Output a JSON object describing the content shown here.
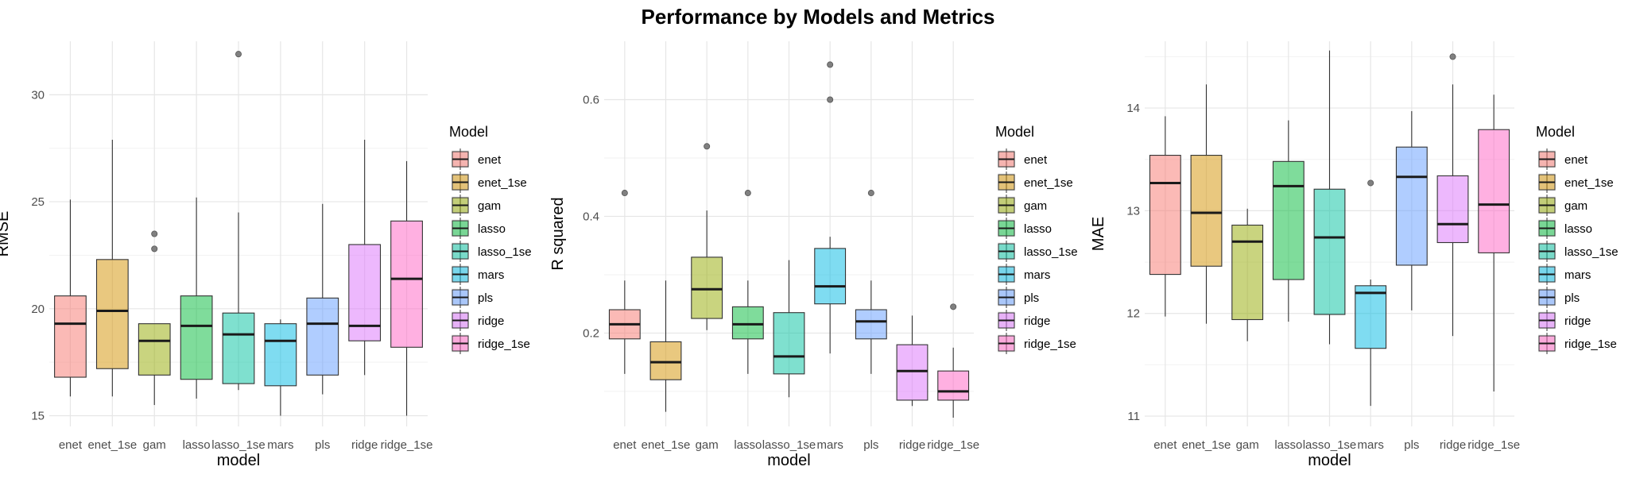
{
  "figure": {
    "title": "Performance by Models and Metrics"
  },
  "colors": {
    "enet": "#F8766D",
    "enet_1se": "#D39200",
    "gam": "#93AA00",
    "lasso": "#00BA38",
    "lasso_1se": "#00C19F",
    "mars": "#00B9E3",
    "pls": "#619CFF",
    "ridge": "#DB72FB",
    "ridge_1se": "#FF61C3"
  },
  "legend": {
    "title": "Model",
    "entries": [
      "enet",
      "enet_1se",
      "gam",
      "lasso",
      "lasso_1se",
      "mars",
      "pls",
      "ridge",
      "ridge_1se"
    ]
  },
  "chart_data": [
    {
      "type": "boxplot",
      "xlabel": "model",
      "ylabel": "RMSE",
      "ylim": [
        14.5,
        32.5
      ],
      "yticks": [
        15,
        20,
        25,
        30
      ],
      "ytick_labels": [
        "15",
        "20",
        "25",
        "30"
      ],
      "grid": true,
      "legend_position": "right",
      "categories": [
        "enet",
        "enet_1se",
        "gam",
        "lasso",
        "lasso_1se",
        "mars",
        "pls",
        "ridge",
        "ridge_1se"
      ],
      "boxes": [
        {
          "model": "enet",
          "lower_whisker": 15.9,
          "q1": 16.8,
          "median": 19.3,
          "q3": 20.6,
          "upper_whisker": 25.1,
          "outliers": []
        },
        {
          "model": "enet_1se",
          "lower_whisker": 15.9,
          "q1": 17.2,
          "median": 19.9,
          "q3": 22.3,
          "upper_whisker": 27.9,
          "outliers": []
        },
        {
          "model": "gam",
          "lower_whisker": 15.5,
          "q1": 16.9,
          "median": 18.5,
          "q3": 19.3,
          "upper_whisker": 19.3,
          "outliers": [
            22.8,
            23.5
          ]
        },
        {
          "model": "lasso",
          "lower_whisker": 15.8,
          "q1": 16.7,
          "median": 19.2,
          "q3": 20.6,
          "upper_whisker": 25.2,
          "outliers": []
        },
        {
          "model": "lasso_1se",
          "lower_whisker": 16.2,
          "q1": 16.5,
          "median": 18.8,
          "q3": 19.8,
          "upper_whisker": 24.5,
          "outliers": [
            31.9
          ]
        },
        {
          "model": "mars",
          "lower_whisker": 15.0,
          "q1": 16.4,
          "median": 18.5,
          "q3": 19.3,
          "upper_whisker": 19.5,
          "outliers": []
        },
        {
          "model": "pls",
          "lower_whisker": 16.0,
          "q1": 16.9,
          "median": 19.3,
          "q3": 20.5,
          "upper_whisker": 24.9,
          "outliers": []
        },
        {
          "model": "ridge",
          "lower_whisker": 16.9,
          "q1": 18.5,
          "median": 19.2,
          "q3": 23.0,
          "upper_whisker": 27.9,
          "outliers": []
        },
        {
          "model": "ridge_1se",
          "lower_whisker": 15.0,
          "q1": 18.2,
          "median": 21.4,
          "q3": 24.1,
          "upper_whisker": 26.9,
          "outliers": []
        }
      ]
    },
    {
      "type": "boxplot",
      "xlabel": "model",
      "ylabel": "R squared",
      "ylim": [
        0.04,
        0.7
      ],
      "yticks": [
        0.2,
        0.4,
        0.6
      ],
      "ytick_labels": [
        "0.2",
        "0.4",
        "0.6"
      ],
      "grid": true,
      "legend_position": "right",
      "categories": [
        "enet",
        "enet_1se",
        "gam",
        "lasso",
        "lasso_1se",
        "mars",
        "pls",
        "ridge",
        "ridge_1se"
      ],
      "boxes": [
        {
          "model": "enet",
          "lower_whisker": 0.13,
          "q1": 0.19,
          "median": 0.215,
          "q3": 0.24,
          "upper_whisker": 0.29,
          "outliers": [
            0.44
          ]
        },
        {
          "model": "enet_1se",
          "lower_whisker": 0.065,
          "q1": 0.12,
          "median": 0.15,
          "q3": 0.185,
          "upper_whisker": 0.29,
          "outliers": []
        },
        {
          "model": "gam",
          "lower_whisker": 0.205,
          "q1": 0.225,
          "median": 0.275,
          "q3": 0.33,
          "upper_whisker": 0.41,
          "outliers": [
            0.52
          ]
        },
        {
          "model": "lasso",
          "lower_whisker": 0.13,
          "q1": 0.19,
          "median": 0.215,
          "q3": 0.245,
          "upper_whisker": 0.29,
          "outliers": [
            0.44
          ]
        },
        {
          "model": "lasso_1se",
          "lower_whisker": 0.09,
          "q1": 0.13,
          "median": 0.16,
          "q3": 0.235,
          "upper_whisker": 0.325,
          "outliers": []
        },
        {
          "model": "mars",
          "lower_whisker": 0.165,
          "q1": 0.25,
          "median": 0.28,
          "q3": 0.345,
          "upper_whisker": 0.365,
          "outliers": [
            0.6,
            0.66
          ]
        },
        {
          "model": "pls",
          "lower_whisker": 0.13,
          "q1": 0.19,
          "median": 0.22,
          "q3": 0.24,
          "upper_whisker": 0.29,
          "outliers": [
            0.44
          ]
        },
        {
          "model": "ridge",
          "lower_whisker": 0.075,
          "q1": 0.085,
          "median": 0.135,
          "q3": 0.18,
          "upper_whisker": 0.23,
          "outliers": []
        },
        {
          "model": "ridge_1se",
          "lower_whisker": 0.055,
          "q1": 0.085,
          "median": 0.1,
          "q3": 0.135,
          "upper_whisker": 0.175,
          "outliers": [
            0.245
          ]
        }
      ]
    },
    {
      "type": "boxplot",
      "xlabel": "model",
      "ylabel": "MAE",
      "ylim": [
        10.9,
        14.65
      ],
      "yticks": [
        11,
        12,
        13,
        14
      ],
      "ytick_labels": [
        "11",
        "12",
        "13",
        "14"
      ],
      "grid": true,
      "legend_position": "right",
      "categories": [
        "enet",
        "enet_1se",
        "gam",
        "lasso",
        "lasso_1se",
        "mars",
        "pls",
        "ridge",
        "ridge_1se"
      ],
      "boxes": [
        {
          "model": "enet",
          "lower_whisker": 11.97,
          "q1": 12.38,
          "median": 13.27,
          "q3": 13.54,
          "upper_whisker": 13.92,
          "outliers": []
        },
        {
          "model": "enet_1se",
          "lower_whisker": 11.9,
          "q1": 12.46,
          "median": 12.98,
          "q3": 13.54,
          "upper_whisker": 14.23,
          "outliers": []
        },
        {
          "model": "gam",
          "lower_whisker": 11.73,
          "q1": 11.94,
          "median": 12.7,
          "q3": 12.86,
          "upper_whisker": 13.02,
          "outliers": []
        },
        {
          "model": "lasso",
          "lower_whisker": 11.92,
          "q1": 12.33,
          "median": 13.24,
          "q3": 13.48,
          "upper_whisker": 13.88,
          "outliers": []
        },
        {
          "model": "lasso_1se",
          "lower_whisker": 11.7,
          "q1": 11.99,
          "median": 12.74,
          "q3": 13.21,
          "upper_whisker": 14.56,
          "outliers": []
        },
        {
          "model": "mars",
          "lower_whisker": 11.1,
          "q1": 11.66,
          "median": 12.2,
          "q3": 12.27,
          "upper_whisker": 12.33,
          "outliers": [
            13.27
          ]
        },
        {
          "model": "pls",
          "lower_whisker": 12.03,
          "q1": 12.47,
          "median": 13.33,
          "q3": 13.62,
          "upper_whisker": 13.97,
          "outliers": []
        },
        {
          "model": "ridge",
          "lower_whisker": 11.78,
          "q1": 12.69,
          "median": 12.87,
          "q3": 13.34,
          "upper_whisker": 14.23,
          "outliers": [
            14.5
          ]
        },
        {
          "model": "ridge_1se",
          "lower_whisker": 11.24,
          "q1": 12.59,
          "median": 13.06,
          "q3": 13.79,
          "upper_whisker": 14.13,
          "outliers": []
        }
      ]
    }
  ]
}
